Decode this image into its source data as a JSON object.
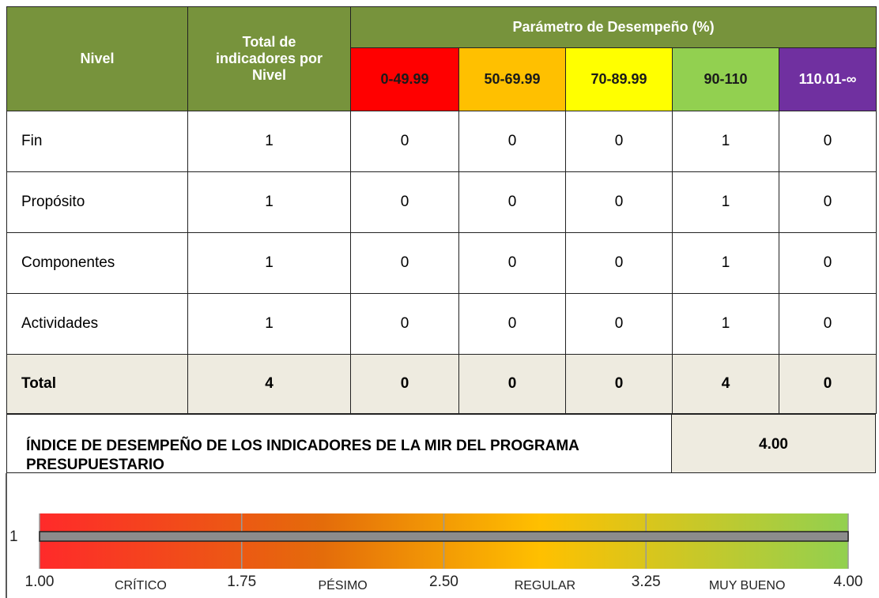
{
  "header": {
    "nivel": "Nivel",
    "total": "Total de indicadores por Nivel",
    "parametro": "Parámetro de Desempeño (%)",
    "ranges": [
      {
        "label": "0-49.99",
        "color": "#ff0000"
      },
      {
        "label": "50-69.99",
        "color": "#ffc000"
      },
      {
        "label": "70-89.99",
        "color": "#ffff00"
      },
      {
        "label": "90-110",
        "color": "#92d050"
      },
      {
        "label": "110.01-∞",
        "color": "#7030a0"
      }
    ]
  },
  "rows": [
    {
      "label": "Fin",
      "values": [
        1,
        0,
        0,
        0,
        1,
        0
      ]
    },
    {
      "label": "Propósito",
      "values": [
        1,
        0,
        0,
        0,
        1,
        0
      ]
    },
    {
      "label": "Componentes",
      "values": [
        1,
        0,
        0,
        0,
        1,
        0
      ]
    },
    {
      "label": "Actividades",
      "values": [
        1,
        0,
        0,
        0,
        1,
        0
      ]
    }
  ],
  "total": {
    "label": "Total",
    "values": [
      4,
      0,
      0,
      0,
      4,
      0
    ]
  },
  "index": {
    "label": "ÍNDICE DE DESEMPEÑO DE LOS INDICADORES DE LA MIR DEL PROGRAMA PRESUPUESTARIO",
    "value": "4.00"
  },
  "scale": {
    "category": "1",
    "value": 4,
    "xlim": [
      1,
      4
    ],
    "xticks": [
      {
        "value": 1,
        "label": "1.00"
      },
      {
        "value": 1.75,
        "label": "1.75"
      },
      {
        "value": 2.5,
        "label": "2.50"
      },
      {
        "value": 3.25,
        "label": "3.25"
      },
      {
        "value": 4,
        "label": "4.00"
      }
    ],
    "zones": [
      "CRÍTICO",
      "PÉSIMO",
      "REGULAR",
      "MUY BUENO"
    ]
  }
}
